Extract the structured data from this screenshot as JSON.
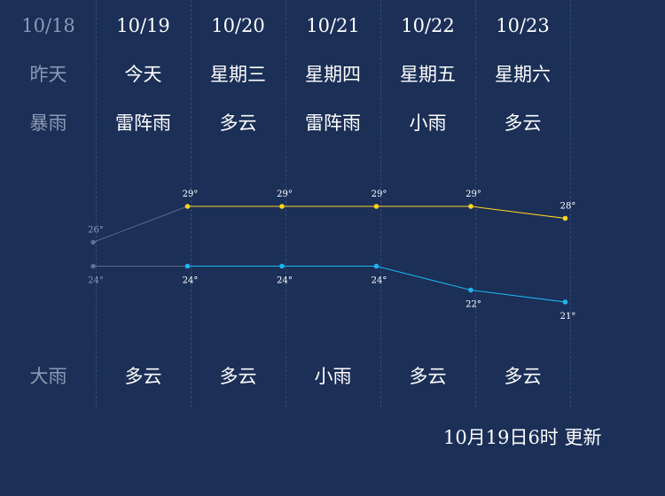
{
  "chart_data": {
    "type": "line",
    "categories": [
      "10/18",
      "10/19",
      "10/20",
      "10/21",
      "10/22",
      "10/23"
    ],
    "weekdays": [
      "昨天",
      "今天",
      "星期三",
      "星期四",
      "星期五",
      "星期六"
    ],
    "day_weather": [
      "暴雨",
      "雷阵雨",
      "多云",
      "雷阵雨",
      "小雨",
      "多云"
    ],
    "night_weather": [
      "大雨",
      "多云",
      "多云",
      "小雨",
      "多云",
      "多云"
    ],
    "series": [
      {
        "values": [
          26,
          29,
          29,
          29,
          29,
          28
        ],
        "color": "#ffd21f"
      },
      {
        "values": [
          24,
          24,
          24,
          24,
          22,
          21
        ],
        "color": "#1fb4f0"
      }
    ],
    "past_color": "#8c9ab4",
    "past_count": 1,
    "unit_suffix": "°"
  },
  "footer": {
    "update_time": "10月19日6时 更新"
  }
}
